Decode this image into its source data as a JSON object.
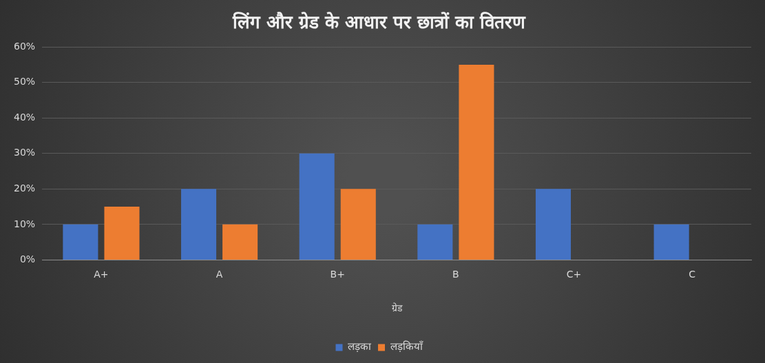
{
  "chart_data": {
    "type": "bar",
    "title": "लिंग और ग्रेड के आधार पर छात्रों का वितरण",
    "xlabel": "ग्रेड",
    "categories": [
      "A+",
      "A",
      "B+",
      "B",
      "C+",
      "C"
    ],
    "series": [
      {
        "name": "लड़का",
        "color": "#4472c4",
        "values": [
          10,
          20,
          30,
          10,
          20,
          10
        ]
      },
      {
        "name": "लड़कियाँ",
        "color": "#ed7d31",
        "values": [
          15,
          10,
          20,
          55,
          0,
          0
        ]
      }
    ],
    "ylim": [
      0,
      60
    ],
    "yticks": [
      {
        "value": 0,
        "label": "0%"
      },
      {
        "value": 10,
        "label": "10%"
      },
      {
        "value": 20,
        "label": "20%"
      },
      {
        "value": 30,
        "label": "30%"
      },
      {
        "value": 40,
        "label": "40%"
      },
      {
        "value": 50,
        "label": "50%"
      },
      {
        "value": 60,
        "label": "60%"
      }
    ],
    "grid": "y",
    "legend": "bottom"
  }
}
